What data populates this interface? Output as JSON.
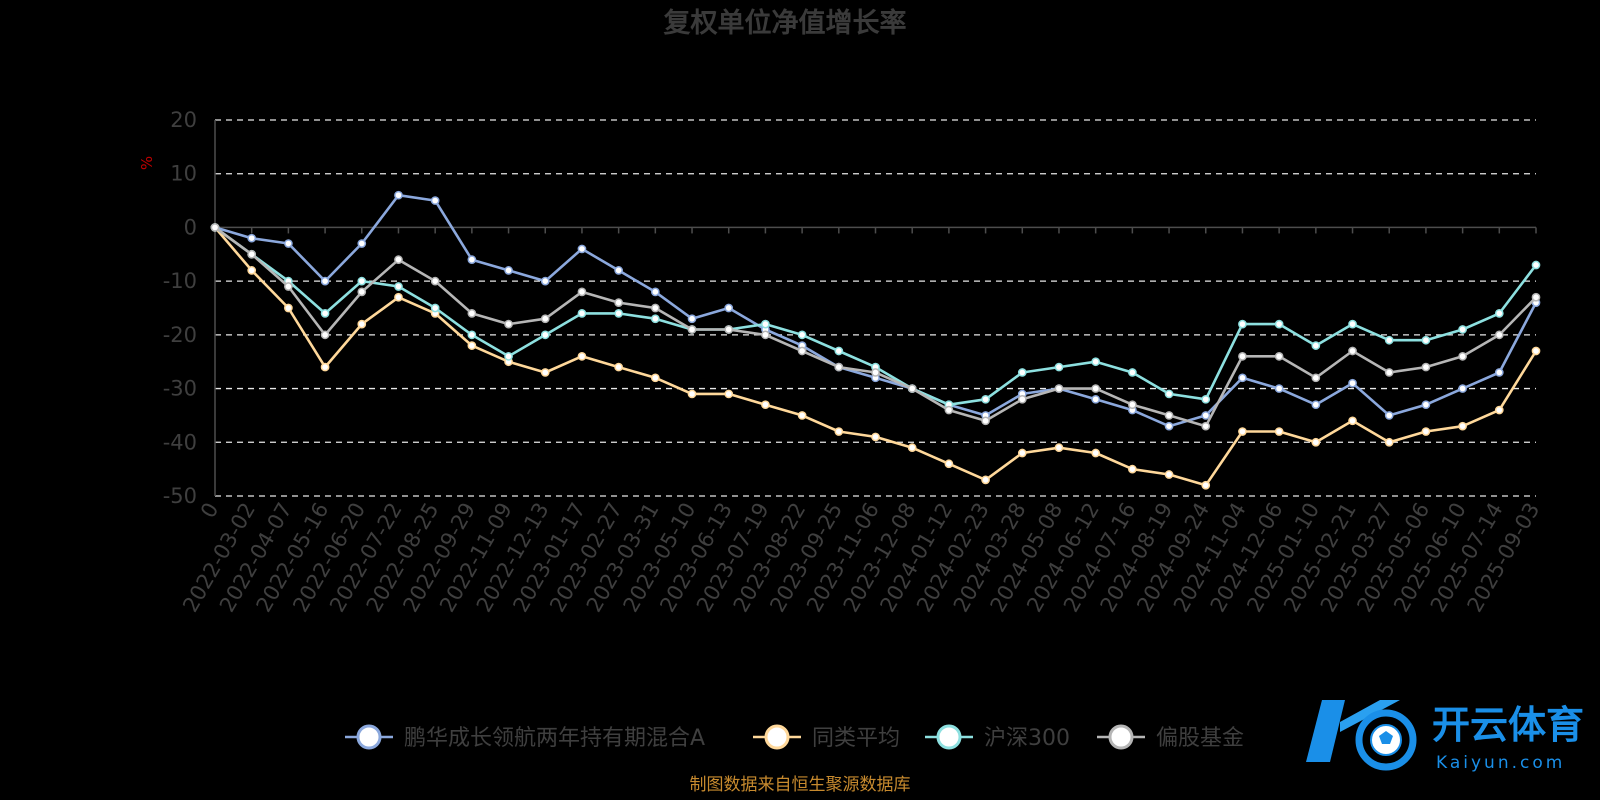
{
  "chart_data": {
    "type": "line",
    "title": "复权单位净值增长率",
    "ylabel": "%",
    "ylim": [
      -50,
      20
    ],
    "yticks": [
      20,
      10,
      0,
      -10,
      -20,
      -30,
      -40,
      -50
    ],
    "x": [
      "0",
      "2022-03-02",
      "2022-04-07",
      "2022-05-16",
      "2022-06-20",
      "2022-07-22",
      "2022-08-25",
      "2022-09-29",
      "2022-11-09",
      "2022-12-13",
      "2023-01-17",
      "2023-02-27",
      "2023-03-31",
      "2023-05-10",
      "2023-06-13",
      "2023-07-19",
      "2023-08-22",
      "2023-09-25",
      "2023-11-06",
      "2023-12-08",
      "2024-01-12",
      "2024-02-23",
      "2024-03-28",
      "2024-05-08",
      "2024-06-12",
      "2024-07-16",
      "2024-08-19",
      "2024-09-24",
      "2024-11-04",
      "2024-12-06",
      "2025-01-10",
      "2025-02-21",
      "2025-03-27",
      "2025-05-06",
      "2025-06-10",
      "2025-07-14",
      "2025-09-03"
    ],
    "grid": true,
    "legend_position": "bottom",
    "series": [
      {
        "name": "鹏华成长领航两年持有期混合A",
        "color": "#8ba8dd",
        "values": [
          0,
          -2,
          -3,
          -10,
          -3,
          6,
          5,
          -6,
          -8,
          -10,
          -4,
          -8,
          -12,
          -17,
          -15,
          -19,
          -22,
          -26,
          -28,
          -30,
          -33,
          -35,
          -31,
          -30,
          -32,
          -34,
          -37,
          -35,
          -28,
          -30,
          -33,
          -29,
          -35,
          -33,
          -30,
          -27,
          -14
        ]
      },
      {
        "name": "同类平均",
        "color": "#ffd89a",
        "values": [
          0,
          -8,
          -15,
          -26,
          -18,
          -13,
          -16,
          -22,
          -25,
          -27,
          -24,
          -26,
          -28,
          -31,
          -31,
          -33,
          -35,
          -38,
          -39,
          -41,
          -44,
          -47,
          -42,
          -41,
          -42,
          -45,
          -46,
          -48,
          -38,
          -38,
          -40,
          -36,
          -40,
          -38,
          -37,
          -34,
          -23
        ]
      },
      {
        "name": "沪深300",
        "color": "#8de0e0",
        "values": [
          0,
          -5,
          -10,
          -16,
          -10,
          -11,
          -15,
          -20,
          -24,
          -20,
          -16,
          -16,
          -17,
          -19,
          -19,
          -18,
          -20,
          -23,
          -26,
          -30,
          -33,
          -32,
          -27,
          -26,
          -25,
          -27,
          -31,
          -32,
          -18,
          -18,
          -22,
          -18,
          -21,
          -21,
          -19,
          -16,
          -7
        ]
      },
      {
        "name": "偏股基金",
        "color": "#b6b6b6",
        "values": [
          0,
          -5,
          -11,
          -20,
          -12,
          -6,
          -10,
          -16,
          -18,
          -17,
          -12,
          -14,
          -15,
          -19,
          -19,
          -20,
          -23,
          -26,
          -27,
          -30,
          -34,
          -36,
          -32,
          -30,
          -30,
          -33,
          -35,
          -37,
          -24,
          -24,
          -28,
          -23,
          -27,
          -26,
          -24,
          -20,
          -13
        ]
      }
    ],
    "source": "制图数据来自恒生聚源数据库"
  },
  "watermark": {
    "text": "开云体育",
    "sub": "Kaiyun.com"
  },
  "colors": {
    "background": "#000000"
  }
}
